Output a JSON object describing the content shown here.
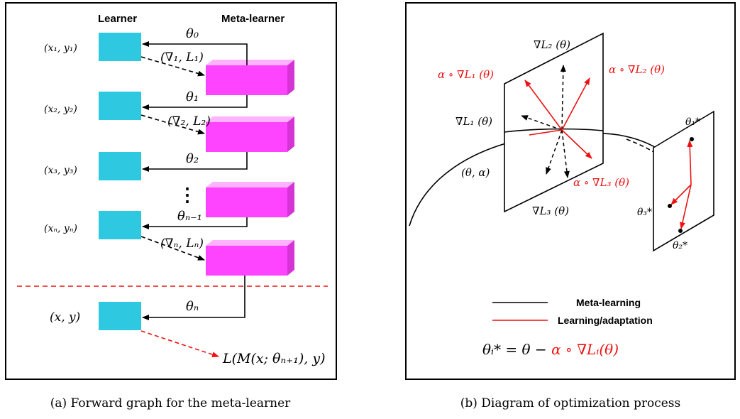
{
  "panel_a": {
    "learner_header": "Learner",
    "meta_header": "Meta-learner",
    "inputs": [
      "(x₁, y₁)",
      "(x₂, y₂)",
      "(x₃, y₃)",
      "(xₙ, yₙ)",
      "(x, y)"
    ],
    "thetas": [
      "θ₀",
      "θ₁",
      "θ₂",
      "θₙ₋₁",
      "θₙ"
    ],
    "grads": [
      "(∇₁, L₁)",
      "(∇₂, L₂)",
      "(∇ₙ, Lₙ)"
    ],
    "ellipsis": "⋮",
    "loss": "L(M(x; θₙ₊₁), y)",
    "caption": "(a) Forward graph for the meta-learner",
    "colors": {
      "learner": "#2ec8e0",
      "meta": "#ff44ff",
      "dashed_red": "#ee1111"
    }
  },
  "panel_b": {
    "grad_L1": "∇L₁ (θ)",
    "grad_L2": "∇L₂ (θ)",
    "grad_L3": "∇L₃ (θ)",
    "alpha_L1": "α ∘ ∇L₁ (θ)",
    "alpha_L2": "α ∘ ∇L₂ (θ)",
    "alpha_L3": "α ∘ ∇L₃ (θ)",
    "theta_alpha": "(θ, α)",
    "theta1_star": "θ₁*",
    "theta2_star": "θ₂*",
    "theta3_star": "θ₃*",
    "legend_meta": "Meta-learning",
    "legend_adapt": "Learning/adaptation",
    "eq_left": "θᵢ* = θ − ",
    "eq_right": "α ∘ ∇Lᵢ(θ)",
    "caption": "(b) Diagram of optimization process",
    "colors": {
      "adapt": "#ee1111",
      "meta": "#000000"
    }
  }
}
